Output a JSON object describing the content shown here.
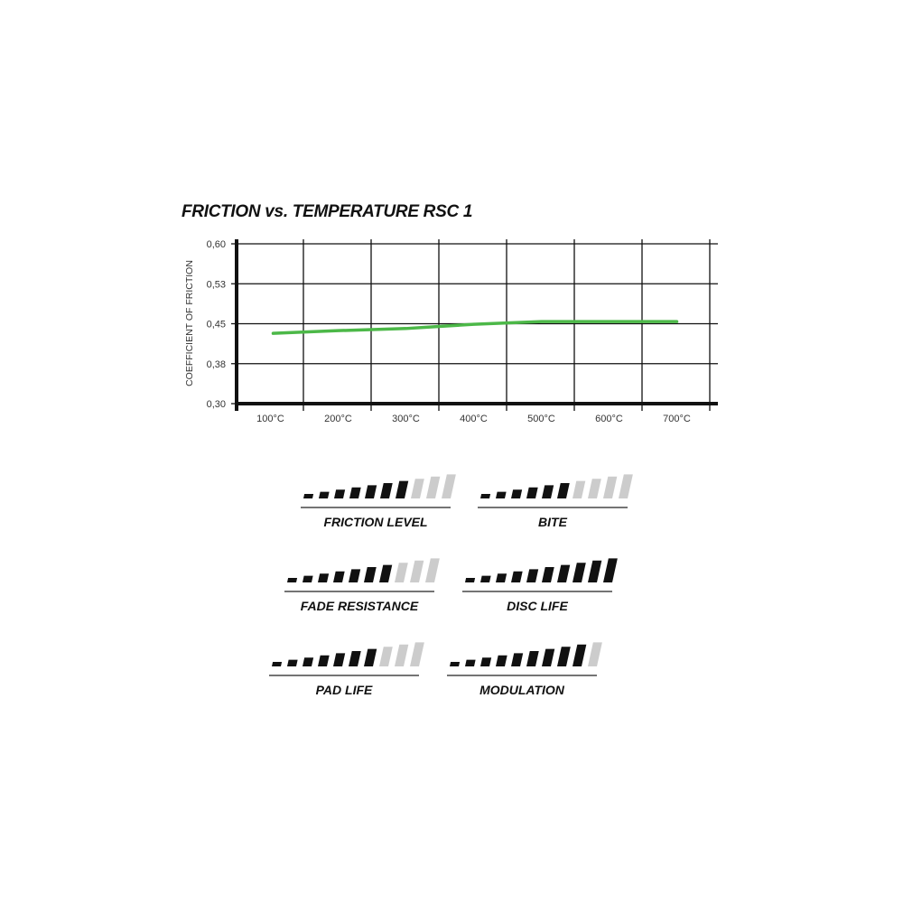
{
  "chart_data": [
    {
      "type": "line",
      "title": "FRICTION vs. TEMPERATURE RSC 1",
      "xlabel": "",
      "ylabel": "COEFFICIENT OF FRICTION",
      "categories": [
        "100°C",
        "200°C",
        "300°C",
        "400°C",
        "500°C",
        "600°C",
        "700°C"
      ],
      "y_ticks": [
        "0,30",
        "0,38",
        "0,45",
        "0,53",
        "0,60"
      ],
      "y_tick_values": [
        0.3,
        0.375,
        0.45,
        0.525,
        0.6
      ],
      "ylim": [
        0.3,
        0.6
      ],
      "grid": true,
      "series": [
        {
          "values": [
            0.432,
            0.437,
            0.441,
            0.449,
            0.454,
            0.454,
            0.454
          ],
          "color": "#4cb848"
        }
      ]
    },
    {
      "type": "bar",
      "max": 10,
      "colors": {
        "filled": "#111111",
        "empty": "#cccccc"
      },
      "ratings": [
        {
          "label": "FRICTION LEVEL",
          "value": 7
        },
        {
          "label": "BITE",
          "value": 6
        },
        {
          "label": "FADE RESISTANCE",
          "value": 7
        },
        {
          "label": "DISC LIFE",
          "value": 10
        },
        {
          "label": "PAD LIFE",
          "value": 7
        },
        {
          "label": "MODULATION",
          "value": 9
        }
      ]
    }
  ]
}
